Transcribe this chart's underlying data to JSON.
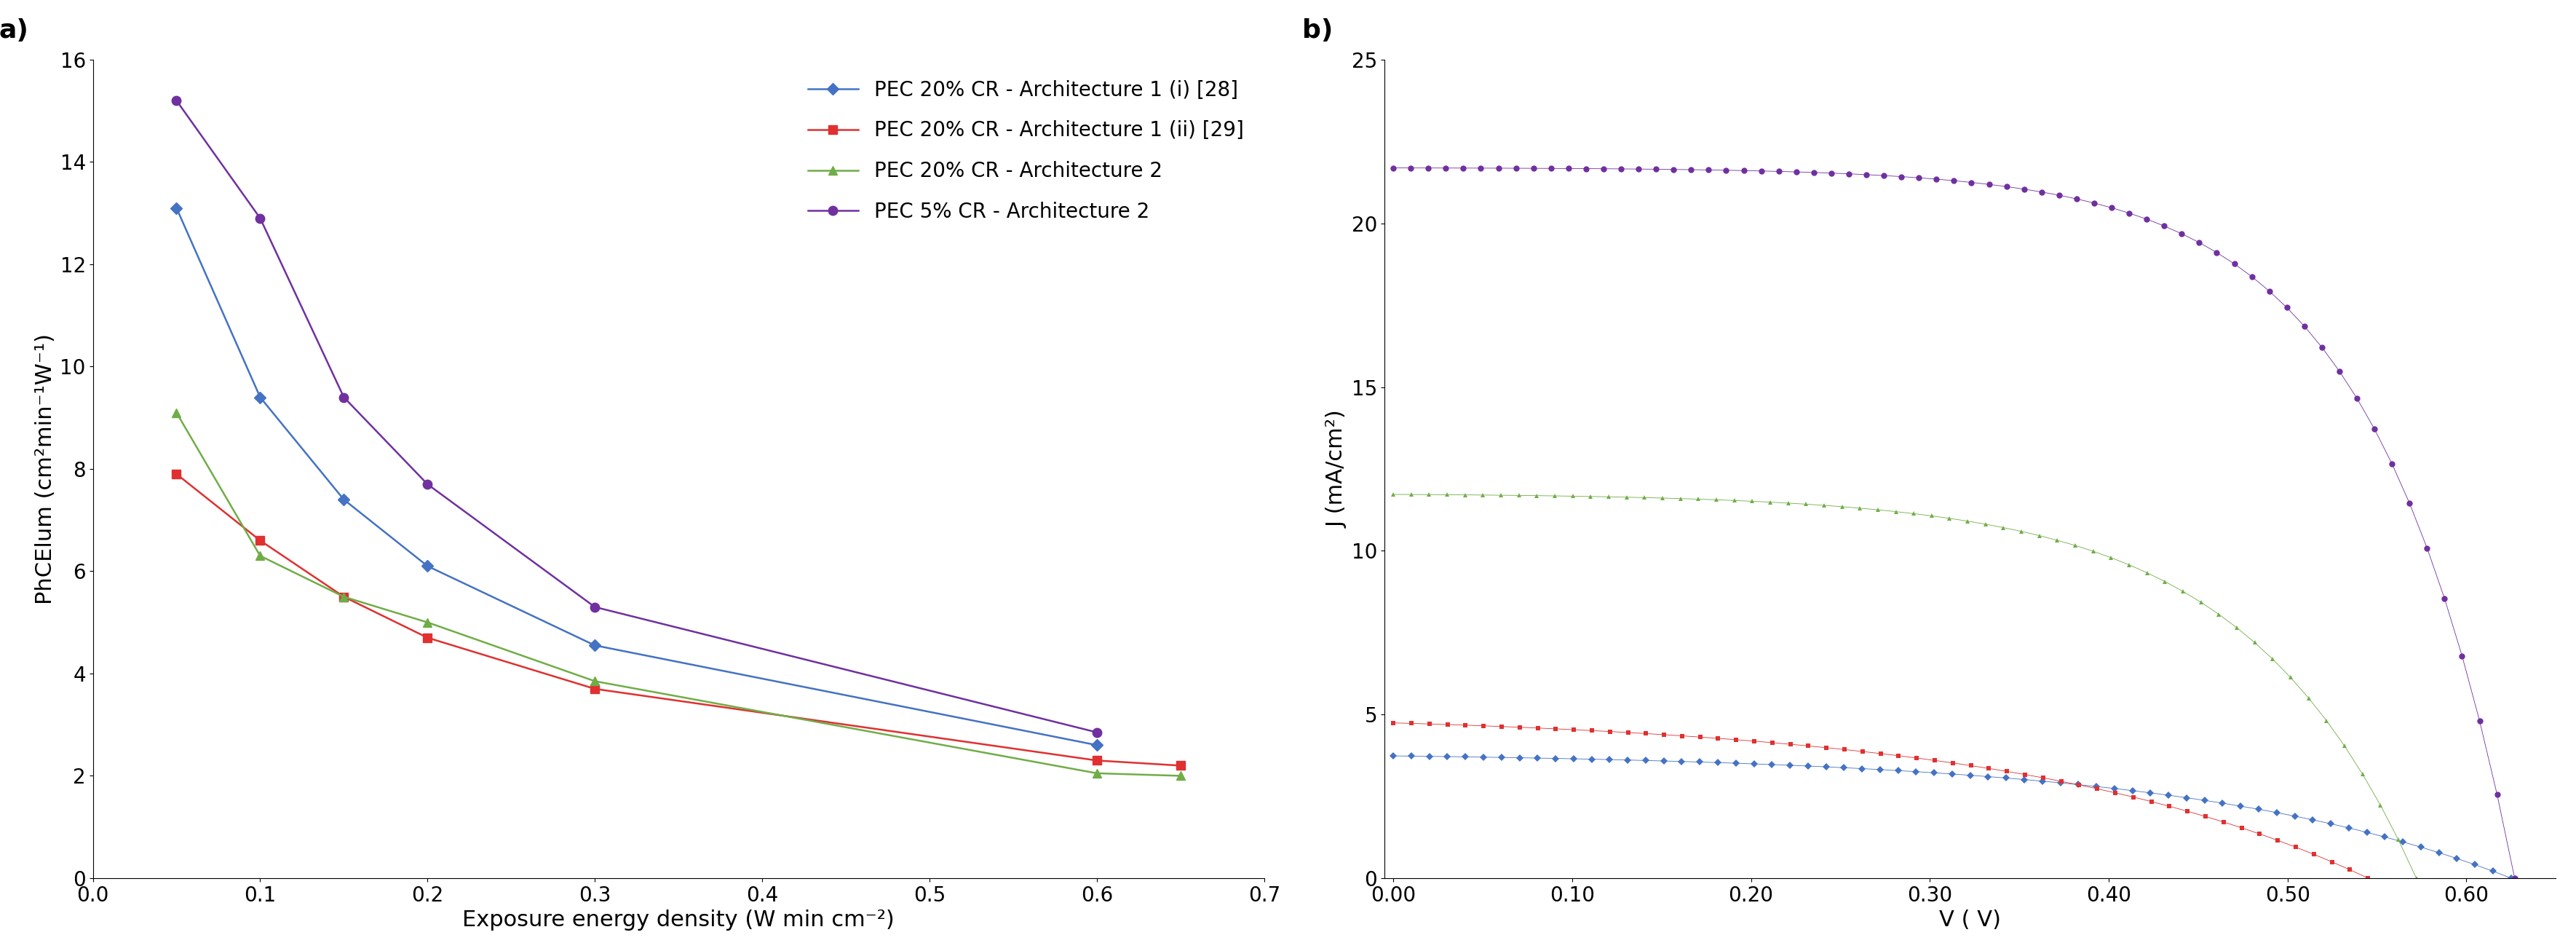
{
  "panel_a": {
    "series": [
      {
        "label": "PEC 20% CR - Architecture 1 (i) [28]",
        "color": "#4472C4",
        "marker": "D",
        "markersize": 8,
        "linewidth": 1.8,
        "x": [
          0.05,
          0.1,
          0.15,
          0.2,
          0.3,
          0.6
        ],
        "y": [
          13.1,
          9.4,
          7.4,
          6.1,
          4.55,
          2.6
        ]
      },
      {
        "label": "PEC 20% CR - Architecture 1 (ii) [29]",
        "color": "#E03030",
        "marker": "s",
        "markersize": 8,
        "linewidth": 1.8,
        "x": [
          0.05,
          0.1,
          0.15,
          0.2,
          0.3,
          0.6,
          0.65
        ],
        "y": [
          7.9,
          6.6,
          5.5,
          4.7,
          3.7,
          2.3,
          2.2
        ]
      },
      {
        "label": "PEC 20% CR - Architecture 2",
        "color": "#70AD47",
        "marker": "^",
        "markersize": 8,
        "linewidth": 1.8,
        "x": [
          0.05,
          0.1,
          0.15,
          0.2,
          0.3,
          0.6,
          0.65
        ],
        "y": [
          9.1,
          6.3,
          5.5,
          5.0,
          3.85,
          2.05,
          2.0
        ]
      },
      {
        "label": "PEC 5% CR - Architecture 2",
        "color": "#7030A0",
        "marker": "o",
        "markersize": 9,
        "linewidth": 1.8,
        "x": [
          0.05,
          0.1,
          0.15,
          0.2,
          0.3,
          0.6
        ],
        "y": [
          15.2,
          12.9,
          9.4,
          7.7,
          5.3,
          2.85
        ]
      }
    ],
    "xlabel": "Exposure energy density (W min cm⁻²)",
    "ylabel": "PhCElum (cm²min⁻¹W⁻¹)",
    "xlim": [
      0,
      0.7
    ],
    "ylim": [
      0,
      16
    ],
    "xticks": [
      0.0,
      0.1,
      0.2,
      0.3,
      0.4,
      0.5,
      0.6,
      0.7
    ],
    "yticks": [
      0,
      2,
      4,
      6,
      8,
      10,
      12,
      14,
      16
    ],
    "label": "a)"
  },
  "panel_b": {
    "series": [
      {
        "label": "PEC 20% CR - Architecture 1 (i) [28]",
        "color": "#4472C4",
        "marker": "D",
        "markersize": 5,
        "jsc": 3.85,
        "voc": 0.625,
        "ideality": 3.5,
        "n_points": 63
      },
      {
        "label": "PEC 20% CR - Architecture 1 (ii) [29]",
        "color": "#E03030",
        "marker": "s",
        "markersize": 5,
        "jsc": 5.05,
        "voc": 0.545,
        "ideality": 2.8,
        "n_points": 55
      },
      {
        "label": "PEC 20% CR - Architecture 2",
        "color": "#70AD47",
        "marker": "^",
        "markersize": 5,
        "jsc": 11.75,
        "voc": 0.572,
        "ideality": 6.0,
        "n_points": 58
      },
      {
        "label": "PEC 5% CR - Architecture 2",
        "color": "#7030A0",
        "marker": "o",
        "markersize": 6,
        "jsc": 21.7,
        "voc": 0.627,
        "ideality": 8.0,
        "n_points": 65
      }
    ],
    "xlabel": "V ( V)",
    "ylabel": "J (mA/cm²)",
    "xlim": [
      -0.005,
      0.65
    ],
    "ylim": [
      0,
      25
    ],
    "xticks": [
      0.0,
      0.1,
      0.2,
      0.3,
      0.4,
      0.5,
      0.6
    ],
    "yticks": [
      0,
      5,
      10,
      15,
      20,
      25
    ],
    "label": "b)"
  },
  "background_color": "#ffffff",
  "font_size": 22,
  "tick_font_size": 20,
  "label_font_size": 26
}
